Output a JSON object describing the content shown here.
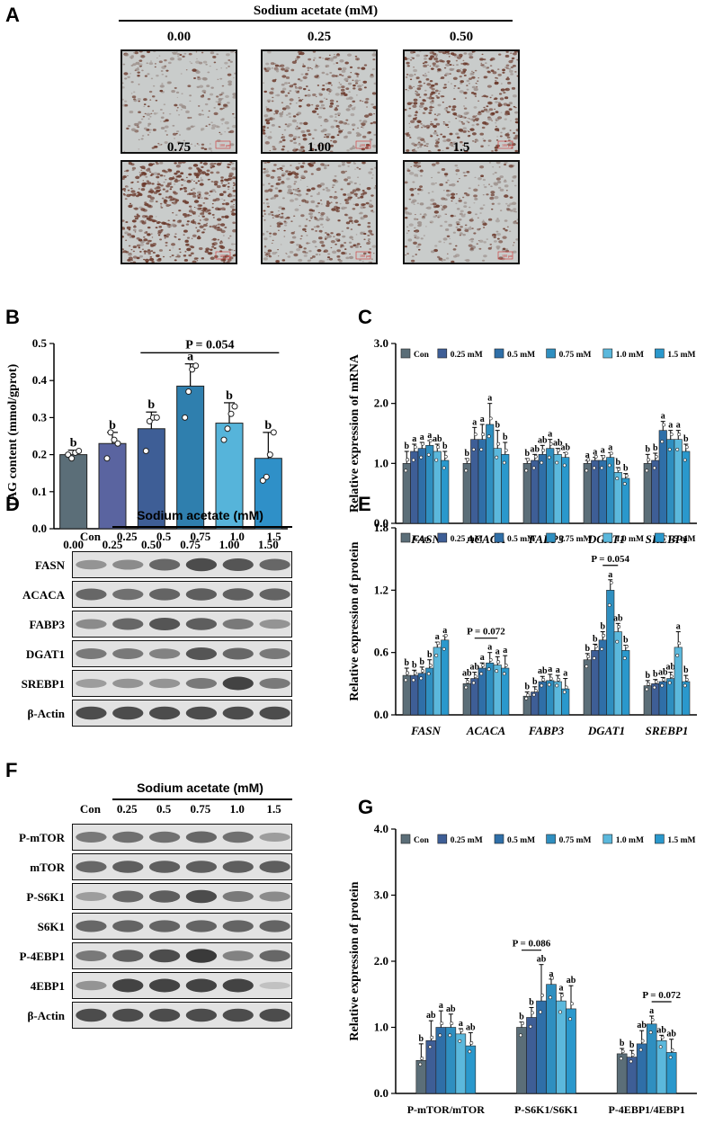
{
  "panel_letters": {
    "A": "A",
    "B": "B",
    "C": "C",
    "D": "D",
    "E": "E",
    "F": "F",
    "G": "G"
  },
  "panelA": {
    "header": "Sodium acetate (mM)",
    "images": [
      {
        "label": "0.00",
        "density": 0.35,
        "scale_bar": "100 μm"
      },
      {
        "label": "0.25",
        "density": 0.55,
        "scale_bar": "100 μm"
      },
      {
        "label": "0.50",
        "density": 0.75,
        "scale_bar": "100 μm"
      },
      {
        "label": "0.75",
        "density": 0.9,
        "scale_bar": "100 μm"
      },
      {
        "label": "1.00",
        "density": 0.6,
        "scale_bar": "100 μm"
      },
      {
        "label": "1.5",
        "density": 0.4,
        "scale_bar": "100 μm"
      }
    ]
  },
  "panelD": {
    "header": "Sodium acetate (mM)",
    "lanes": [
      "Con",
      "0.25",
      "0.5",
      "0.75",
      "1.0",
      "1.5"
    ],
    "rows": [
      {
        "label": "FASN",
        "intensity": [
          0.45,
          0.5,
          0.7,
          0.85,
          0.8,
          0.7
        ]
      },
      {
        "label": "ACACA",
        "intensity": [
          0.7,
          0.65,
          0.72,
          0.75,
          0.74,
          0.72
        ]
      },
      {
        "label": "FABP3",
        "intensity": [
          0.5,
          0.7,
          0.8,
          0.75,
          0.6,
          0.45
        ]
      },
      {
        "label": "DGAT1",
        "intensity": [
          0.6,
          0.6,
          0.55,
          0.8,
          0.7,
          0.6
        ]
      },
      {
        "label": "SREBP1",
        "intensity": [
          0.4,
          0.45,
          0.45,
          0.6,
          0.9,
          0.6
        ]
      },
      {
        "label": "β-Actin",
        "intensity": [
          0.85,
          0.85,
          0.85,
          0.85,
          0.85,
          0.85
        ]
      }
    ]
  },
  "panelF": {
    "header": "Sodium acetate (mM)",
    "lanes": [
      "Con",
      "0.25",
      "0.5",
      "0.75",
      "1.0",
      "1.5"
    ],
    "rows": [
      {
        "label": "P-mTOR",
        "intensity": [
          0.6,
          0.65,
          0.65,
          0.7,
          0.65,
          0.4
        ]
      },
      {
        "label": "mTOR",
        "intensity": [
          0.7,
          0.75,
          0.75,
          0.75,
          0.75,
          0.75
        ]
      },
      {
        "label": "P-S6K1",
        "intensity": [
          0.4,
          0.7,
          0.75,
          0.85,
          0.6,
          0.5
        ]
      },
      {
        "label": "S6K1",
        "intensity": [
          0.7,
          0.72,
          0.72,
          0.72,
          0.72,
          0.72
        ]
      },
      {
        "label": "P-4EBP1",
        "intensity": [
          0.6,
          0.75,
          0.85,
          0.95,
          0.55,
          0.7
        ]
      },
      {
        "label": "4EBP1",
        "intensity": [
          0.45,
          0.9,
          0.9,
          0.9,
          0.9,
          0.2
        ]
      },
      {
        "label": "β-Actin",
        "intensity": [
          0.85,
          0.85,
          0.85,
          0.85,
          0.85,
          0.85
        ]
      }
    ]
  },
  "chart_data": [
    {
      "id": "B",
      "type": "bar",
      "ylabel": "TAG content (mmol/gprot)",
      "ylim": [
        0,
        0.5
      ],
      "yticks": [
        "0.0",
        "0.1",
        "0.2",
        "0.3",
        "0.4",
        "0.5"
      ],
      "categories": [
        "0.00",
        "0.25",
        "0.50",
        "0.75",
        "1.00",
        "1.50"
      ],
      "values": [
        0.2,
        0.23,
        0.27,
        0.385,
        0.285,
        0.19
      ],
      "errors": [
        0.012,
        0.03,
        0.045,
        0.06,
        0.055,
        0.07
      ],
      "letters": [
        "b",
        "b",
        "b",
        "a",
        "b",
        "b"
      ],
      "colors": [
        "#5b6e78",
        "#5a64a0",
        "#3e5e96",
        "#2f7fae",
        "#56b4da",
        "#2f90c8"
      ],
      "points": [
        [
          0.2,
          0.19,
          0.205,
          0.21
        ],
        [
          0.19,
          0.26,
          0.24,
          0.23
        ],
        [
          0.21,
          0.29,
          0.3,
          0.3
        ],
        [
          0.3,
          0.37,
          0.43,
          0.44
        ],
        [
          0.24,
          0.27,
          0.31,
          0.33
        ],
        [
          0.13,
          0.14,
          0.2,
          0.26
        ]
      ],
      "annotation": {
        "text": "P = 0.054",
        "from": 2,
        "to": 5
      }
    },
    {
      "id": "C",
      "type": "bar",
      "ylabel": "Relative expression of mRNA",
      "ylim": [
        0,
        3
      ],
      "yticks": [
        "0.0",
        "1.0",
        "2.0",
        "3.0"
      ],
      "categories": [
        "FASN",
        "ACACA",
        "FABP3",
        "DGAT1",
        "SREBP1"
      ],
      "legend": [
        "Con",
        "0.25 mM",
        "0.5 mM",
        "0.75 mM",
        "1.0 mM",
        "1.5 mM"
      ],
      "colors": [
        "#5b6e78",
        "#3e5e96",
        "#2f6fa8",
        "#2f8fc0",
        "#5bb8dc",
        "#2a98cc"
      ],
      "series": [
        {
          "name": "Con",
          "values": [
            1.0,
            1.0,
            1.0,
            1.0,
            1.0
          ],
          "errors": [
            0.2,
            0.08,
            0.08,
            0.05,
            0.15
          ],
          "letters": [
            "b",
            "b",
            "b",
            "a",
            "b"
          ]
        },
        {
          "name": "0.25 mM",
          "values": [
            1.2,
            1.4,
            1.05,
            1.05,
            1.05
          ],
          "errors": [
            0.12,
            0.2,
            0.1,
            0.05,
            0.12
          ],
          "letters": [
            "a",
            "a",
            "ab",
            "a",
            "b"
          ]
        },
        {
          "name": "0.5 mM",
          "values": [
            1.25,
            1.4,
            1.15,
            1.05,
            1.55
          ],
          "errors": [
            0.1,
            0.25,
            0.15,
            0.08,
            0.15
          ],
          "letters": [
            "a",
            "a",
            "ab",
            "a",
            "a"
          ]
        },
        {
          "name": "0.75 mM",
          "values": [
            1.3,
            1.65,
            1.25,
            1.1,
            1.4
          ],
          "errors": [
            0.08,
            0.35,
            0.15,
            0.08,
            0.15
          ],
          "letters": [
            "a",
            "a",
            "a",
            "a",
            "a"
          ]
        },
        {
          "name": "1.0 mM",
          "values": [
            1.2,
            1.25,
            1.15,
            0.85,
            1.4
          ],
          "errors": [
            0.12,
            0.3,
            0.1,
            0.08,
            0.15
          ],
          "letters": [
            "ab",
            "b",
            "ab",
            "b",
            "a"
          ]
        },
        {
          "name": "1.5 mM",
          "values": [
            1.05,
            1.15,
            1.1,
            0.75,
            1.2
          ],
          "errors": [
            0.15,
            0.2,
            0.08,
            0.08,
            0.12
          ],
          "letters": [
            "b",
            "b",
            "ab",
            "b",
            "b"
          ]
        }
      ]
    },
    {
      "id": "E",
      "type": "bar",
      "ylabel": "Relative expression of protein",
      "ylim": [
        0,
        1.8
      ],
      "yticks": [
        "0.0",
        "0.6",
        "1.2",
        "1.8"
      ],
      "categories": [
        "FASN",
        "ACACA",
        "FABP3",
        "DGAT1",
        "SREBP1"
      ],
      "legend": [
        "Con",
        "0.25 mM",
        "0.5 mM",
        "0.75 mM",
        "1.0 mM",
        "1.5 mM"
      ],
      "colors": [
        "#5b6e78",
        "#3e5e96",
        "#2f6fa8",
        "#2f8fc0",
        "#5bb8dc",
        "#2a98cc"
      ],
      "series": [
        {
          "name": "Con",
          "values": [
            0.38,
            0.3,
            0.18,
            0.53,
            0.28
          ],
          "errors": [
            0.07,
            0.05,
            0.04,
            0.06,
            0.05
          ],
          "letters": [
            "b",
            "ab",
            "b",
            "b",
            "b"
          ]
        },
        {
          "name": "0.25 mM",
          "values": [
            0.38,
            0.35,
            0.22,
            0.62,
            0.3
          ],
          "errors": [
            0.05,
            0.06,
            0.05,
            0.06,
            0.04
          ],
          "letters": [
            "b",
            "ab",
            "b",
            "b",
            "b"
          ]
        },
        {
          "name": "0.5 mM",
          "values": [
            0.4,
            0.45,
            0.32,
            0.72,
            0.32
          ],
          "errors": [
            0.06,
            0.05,
            0.05,
            0.08,
            0.04
          ],
          "letters": [
            "b",
            "a",
            "ab",
            "b",
            "ab"
          ]
        },
        {
          "name": "0.75 mM",
          "values": [
            0.45,
            0.5,
            0.33,
            1.2,
            0.35
          ],
          "errors": [
            0.08,
            0.1,
            0.06,
            0.1,
            0.06
          ],
          "letters": [
            "b",
            "a",
            "a",
            "a",
            "ab"
          ]
        },
        {
          "name": "1.0 mM",
          "values": [
            0.65,
            0.48,
            0.32,
            0.8,
            0.65
          ],
          "errors": [
            0.05,
            0.08,
            0.06,
            0.08,
            0.15
          ],
          "letters": [
            "a",
            "a",
            "a",
            "ab",
            "a"
          ]
        },
        {
          "name": "1.5 mM",
          "values": [
            0.72,
            0.45,
            0.25,
            0.62,
            0.32
          ],
          "errors": [
            0.04,
            0.12,
            0.1,
            0.05,
            0.06
          ],
          "letters": [
            "a",
            "a",
            "a",
            "b",
            "b"
          ]
        }
      ],
      "annotations": [
        {
          "text": "P = 0.072",
          "category": 1,
          "from": 1,
          "to": 4
        },
        {
          "text": "P = 0.054",
          "category": 3,
          "from": 2,
          "to": 4
        }
      ]
    },
    {
      "id": "G",
      "type": "bar",
      "ylabel": "Relative expression of protein",
      "ylim": [
        0,
        4
      ],
      "yticks": [
        "0.0",
        "1.0",
        "2.0",
        "3.0",
        "4.0"
      ],
      "categories": [
        "P-mTOR/mTOR",
        "P-S6K1/S6K1",
        "P-4EBP1/4EBP1"
      ],
      "legend": [
        "Con",
        "0.25 mM",
        "0.5 mM",
        "0.75 mM",
        "1.0 mM",
        "1.5 mM"
      ],
      "colors": [
        "#5b6e78",
        "#3e5e96",
        "#2f6fa8",
        "#2f8fc0",
        "#5bb8dc",
        "#2a98cc"
      ],
      "series": [
        {
          "name": "Con",
          "values": [
            0.5,
            1.0,
            0.6
          ],
          "errors": [
            0.25,
            0.08,
            0.08
          ],
          "letters": [
            "b",
            "b",
            "b"
          ]
        },
        {
          "name": "0.25 mM",
          "values": [
            0.8,
            1.15,
            0.55
          ],
          "errors": [
            0.3,
            0.15,
            0.1
          ],
          "letters": [
            "ab",
            "b",
            "b"
          ]
        },
        {
          "name": "0.5 mM",
          "values": [
            1.0,
            1.4,
            0.75
          ],
          "errors": [
            0.25,
            0.55,
            0.2
          ],
          "letters": [
            "a",
            "ab",
            "ab"
          ]
        },
        {
          "name": "0.75 mM",
          "values": [
            1.0,
            1.65,
            1.05
          ],
          "errors": [
            0.2,
            0.08,
            0.12
          ],
          "letters": [
            "ab",
            "a",
            "a"
          ]
        },
        {
          "name": "1.0 mM",
          "values": [
            0.9,
            1.4,
            0.8
          ],
          "errors": [
            0.08,
            0.12,
            0.08
          ],
          "letters": [
            "a",
            "a",
            "ab"
          ]
        },
        {
          "name": "1.5 mM",
          "values": [
            0.72,
            1.28,
            0.62
          ],
          "errors": [
            0.2,
            0.35,
            0.2
          ],
          "letters": [
            "ab",
            "ab",
            "ab"
          ]
        }
      ],
      "annotations": [
        {
          "text": "P = 0.086",
          "category": 1,
          "from": 0,
          "to": 2
        },
        {
          "text": "P = 0.072",
          "category": 2,
          "from": 3,
          "to": 5
        }
      ]
    }
  ]
}
